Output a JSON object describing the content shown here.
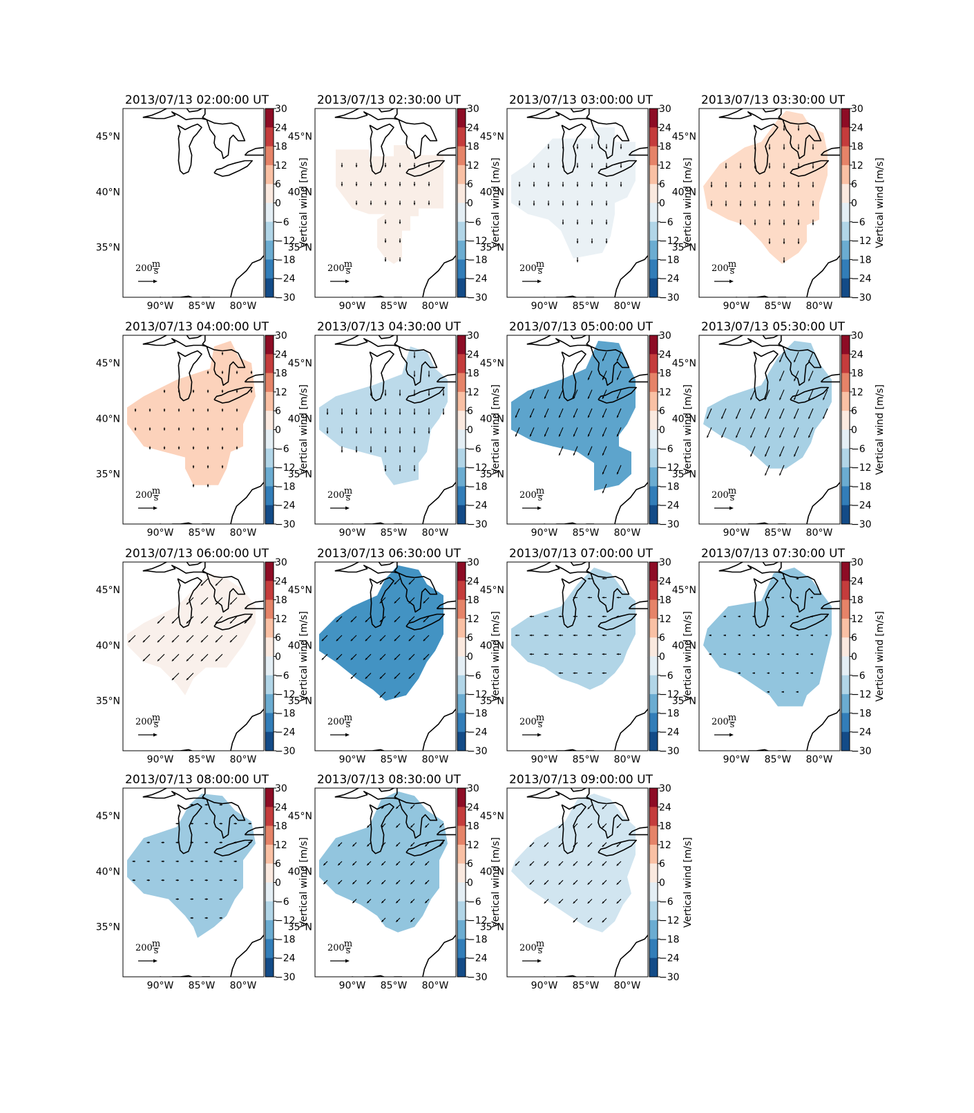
{
  "figure": {
    "colorbar_label": "Vertical wind [m/s]",
    "colorbar_ticks": [
      "30",
      "24",
      "18",
      "12",
      "6",
      "0",
      "−6",
      "−12",
      "−18",
      "−24",
      "−30"
    ],
    "colorbar_range": [
      -30,
      30
    ],
    "colormap": "RdBu_r",
    "lat_ticks": [
      "45°N",
      "40°N",
      "35°N"
    ],
    "lon_ticks": [
      "90°W",
      "85°W",
      "80°W"
    ],
    "scale_arrow_value": "200",
    "scale_arrow_unit_num": "m",
    "scale_arrow_unit_den": "s"
  },
  "panels": [
    {
      "title": "2013/07/13 02:00:00 UT",
      "vertical_wind": null,
      "wind_direction": "none",
      "arrow_size": 0
    },
    {
      "title": "2013/07/13 02:30:00 UT",
      "vertical_wind": 2,
      "wind_direction": "S",
      "arrow_size": 0.7
    },
    {
      "title": "2013/07/13 03:00:00 UT",
      "vertical_wind": -2,
      "wind_direction": "S",
      "arrow_size": 0.8
    },
    {
      "title": "2013/07/13 03:30:00 UT",
      "vertical_wind": 6,
      "wind_direction": "S",
      "arrow_size": 0.9
    },
    {
      "title": "2013/07/13 04:00:00 UT",
      "vertical_wind": 7,
      "wind_direction": "S",
      "arrow_size": 0.5
    },
    {
      "title": "2013/07/13 04:30:00 UT",
      "vertical_wind": -8,
      "wind_direction": "S",
      "arrow_size": 1.0
    },
    {
      "title": "2013/07/13 05:00:00 UT",
      "vertical_wind": -16,
      "wind_direction": "SSW",
      "arrow_size": 1.6
    },
    {
      "title": "2013/07/13 05:30:00 UT",
      "vertical_wind": -10,
      "wind_direction": "SSW",
      "arrow_size": 1.8
    },
    {
      "title": "2013/07/13 06:00:00 UT",
      "vertical_wind": 1.5,
      "wind_direction": "SW",
      "arrow_size": 1.6
    },
    {
      "title": "2013/07/13 06:30:00 UT",
      "vertical_wind": -18,
      "wind_direction": "SW",
      "arrow_size": 1.3
    },
    {
      "title": "2013/07/13 07:00:00 UT",
      "vertical_wind": -9,
      "wind_direction": "W",
      "arrow_size": 0.7
    },
    {
      "title": "2013/07/13 07:30:00 UT",
      "vertical_wind": -12,
      "wind_direction": "W",
      "arrow_size": 0.4
    },
    {
      "title": "2013/07/13 08:00:00 UT",
      "vertical_wind": -11,
      "wind_direction": "W",
      "arrow_size": 0.5
    },
    {
      "title": "2013/07/13 08:30:00 UT",
      "vertical_wind": -12,
      "wind_direction": "SW",
      "arrow_size": 0.9
    },
    {
      "title": "2013/07/13 09:00:00 UT",
      "vertical_wind": -6,
      "wind_direction": "SW",
      "arrow_size": 1.0
    }
  ]
}
